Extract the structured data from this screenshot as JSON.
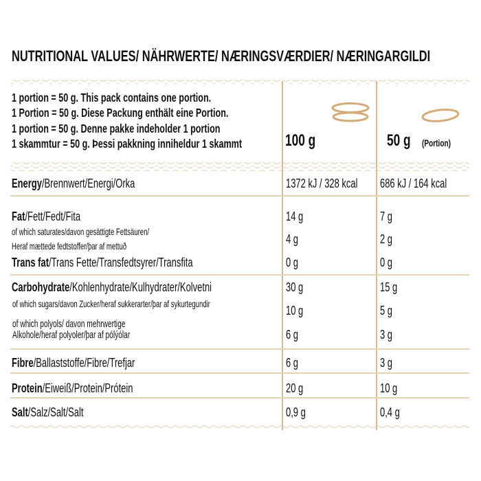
{
  "title": "NUTRITIONAL VALUES/ NÄHRWERTE/ NÆRINGSVÆRDIER/ NÆRINGARGILDI",
  "intro": [
    "1 portion = 50 g. This pack contains one portion.",
    "1 Portion = 50 g. Diese Packung enthält eine Portion.",
    "1 portion = 50 g. Denne pakke indeholder 1 portion",
    "1 skammtur = 50 g. Þessi pakkning inniheldur 1 skammt"
  ],
  "columns": {
    "per100": "100 g",
    "perPortion": "50 g",
    "portionLabel": "(Portion)",
    "icon100": "stacked-patties-icon",
    "iconPortion": "single-patty-icon"
  },
  "rows": {
    "energy": {
      "bold": "Energy",
      "rest": "/Brennwert/Energi/Orka",
      "v100": "1372 kJ / 328 kcal",
      "vPortion": "686 kJ / 164 kcal"
    },
    "fat": {
      "bold": "Fat",
      "rest": "/Fett/Fedt/Fita",
      "v100": "14 g",
      "vPortion": "7 g"
    },
    "saturates": {
      "line1": "of which saturates/davon gesättigte Fettsäuren/",
      "line2": "Heraf mættede fedtstoffer/þar af mettuð",
      "v100": "4 g",
      "vPortion": "2 g"
    },
    "transfat": {
      "bold": "Trans fat",
      "rest": "/Trans Fette/Transfedtsyrer/Transfita",
      "v100": "0 g",
      "vPortion": "0 g"
    },
    "carbohydrate": {
      "bold": "Carbohydrate",
      "rest": "/Kohlenhydrate/Kulhydrater/Kolvetni",
      "v100": "30 g",
      "vPortion": "15 g"
    },
    "sugars": {
      "line1": "of which sugars/davon Zucker/heraf sukkerarter/þar af sykurtegundir",
      "v100": "10 g",
      "vPortion": "5 g"
    },
    "polyols": {
      "line1": "of which polyols/ davon mehrwertige",
      "line2": "Alkohole/heraf polyoler/þar af pólýólar",
      "v100": "6 g",
      "vPortion": "3 g"
    },
    "fibre": {
      "bold": "Fibre",
      "rest": "/Ballaststoffe/Fibre/Trefjar",
      "v100": "6 g",
      "vPortion": "3 g"
    },
    "protein": {
      "bold": "Protein",
      "rest": "/Eiweiß/Protein/Prótein",
      "v100": "20 g",
      "vPortion": "10 g"
    },
    "salt": {
      "bold": "Salt",
      "rest": "/Salz/Salt/Salt",
      "v100": "0,9 g",
      "vPortion": "0,4 g"
    }
  },
  "colors": {
    "rule": "#e6d3b5",
    "column_rule": "#d9b994",
    "icon": "#d4aa78",
    "wave": "#e9dcc6"
  }
}
